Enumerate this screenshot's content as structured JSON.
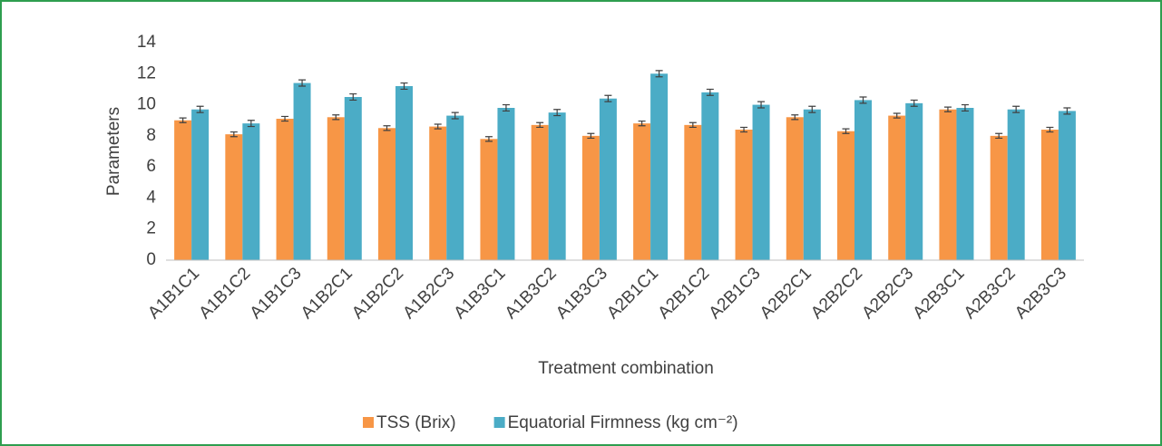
{
  "chart_data": {
    "type": "bar",
    "x_label": "Treatment combination",
    "y_label": "Parameters",
    "categories": [
      "A1B1C1",
      "A1B1C2",
      "A1B1C3",
      "A1B2C1",
      "A1B2C2",
      "A1B2C3",
      "A1B3C1",
      "A1B3C2",
      "A1B3C3",
      "A2B1C1",
      "A2B1C2",
      "A2B1C3",
      "A2B2C1",
      "A2B2C2",
      "A2B2C3",
      "A2B3C1",
      "A2B3C2",
      "A2B3C3"
    ],
    "series": [
      {
        "name": "TSS (Brix)",
        "color": "#f79646",
        "values": [
          9.0,
          8.1,
          9.1,
          9.2,
          8.5,
          8.6,
          7.8,
          8.7,
          8.0,
          8.8,
          8.7,
          8.4,
          9.2,
          8.3,
          9.3,
          9.7,
          8.0,
          8.4
        ],
        "errors": [
          0.15,
          0.15,
          0.15,
          0.15,
          0.15,
          0.15,
          0.15,
          0.15,
          0.15,
          0.15,
          0.15,
          0.15,
          0.15,
          0.15,
          0.15,
          0.15,
          0.15,
          0.15
        ]
      },
      {
        "name": "Equatorial Firmness (kg cm⁻²)",
        "color": "#4bacc6",
        "values": [
          9.7,
          8.8,
          11.4,
          10.5,
          11.2,
          9.3,
          9.8,
          9.5,
          10.4,
          12.0,
          10.8,
          10.0,
          9.7,
          10.3,
          10.1,
          9.8,
          9.7,
          9.6
        ],
        "errors": [
          0.2,
          0.2,
          0.2,
          0.2,
          0.2,
          0.2,
          0.2,
          0.2,
          0.2,
          0.2,
          0.2,
          0.2,
          0.2,
          0.2,
          0.2,
          0.2,
          0.2,
          0.2
        ]
      }
    ],
    "ylim": [
      0,
      14
    ],
    "yticks": [
      0,
      2,
      4,
      6,
      8,
      10,
      12,
      14
    ],
    "grid": false,
    "legend": "bottom"
  }
}
